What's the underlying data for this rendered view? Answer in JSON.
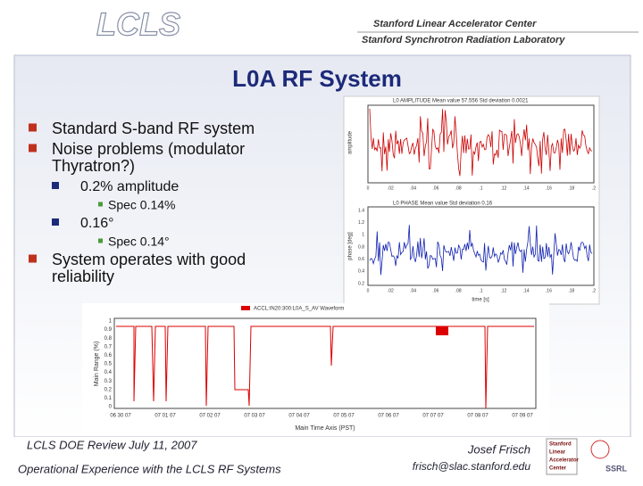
{
  "header": {
    "logo": "LCLS",
    "org_lines": [
      "Stanford Linear Accelerator Center",
      "Stanford Synchrotron Radiation Laboratory"
    ]
  },
  "title": "L0A RF System",
  "bullets": [
    {
      "level": 1,
      "lines": [
        "Standard S-band RF system"
      ]
    },
    {
      "level": 1,
      "lines": [
        "Noise problems (modulator",
        "Thyratron?)"
      ]
    },
    {
      "level": 2,
      "lines": [
        "0.2% amplitude"
      ]
    },
    {
      "level": 3,
      "lines": [
        "Spec 0.14%"
      ]
    },
    {
      "level": 2,
      "lines": [
        "0.16°"
      ]
    },
    {
      "level": 3,
      "lines": [
        "Spec 0.14°"
      ]
    },
    {
      "level": 1,
      "lines": [
        "System operates with good",
        "reliability"
      ]
    }
  ],
  "plots": {
    "top": {
      "title": "L0 AMPLITUDE  Mean value 57.556  Std deviation 0.0021",
      "ylabel": "amplitude",
      "xticks": [
        "0",
        ".02",
        ".04",
        ".06",
        ".08",
        ".1",
        ".12",
        ".14",
        ".16",
        ".18",
        ".2"
      ]
    },
    "middle": {
      "title": "L0 PHASE  Mean value  Std deviation 0.16",
      "ylabel": "phase [deg]",
      "xlabel": "time [s]",
      "yticks": [
        "1.4",
        "1.2",
        "1",
        "0.8",
        "0.6",
        "0.4",
        "0.2"
      ],
      "xticks": [
        "0",
        ".02",
        ".04",
        ".06",
        ".08",
        ".1",
        ".12",
        ".14",
        ".16",
        ".18",
        ".2"
      ]
    },
    "bottom": {
      "legend": "ACCL:IN20:300:L0A_S_AV Waveform",
      "ylabel": "Main Range (%)",
      "xlabel": "Main Time Axis (PST)",
      "yticks": [
        "1",
        "0.9",
        "0.8",
        "0.7",
        "0.6",
        "0.5",
        "0.4",
        "0.3",
        "0.2",
        "0.1",
        "0"
      ],
      "xticks": [
        "06 30 07",
        "07 01 07",
        "07 02 07",
        "07 03 07",
        "07 04 07",
        "07 05 07",
        "07 06 07",
        "07 07 07",
        "07 08 07",
        "07 09 07"
      ]
    }
  },
  "footer": {
    "event": "LCLS DOE Review  July 11, 2007",
    "talk": "Operational Experience with the LCLS RF Systems",
    "author": "Josef Frisch",
    "email": "frisch@slac.stanford.edu",
    "logo_lines": [
      "Stanford",
      "Linear",
      "Accelerator",
      "Center"
    ],
    "ssrl": "SSRL"
  }
}
